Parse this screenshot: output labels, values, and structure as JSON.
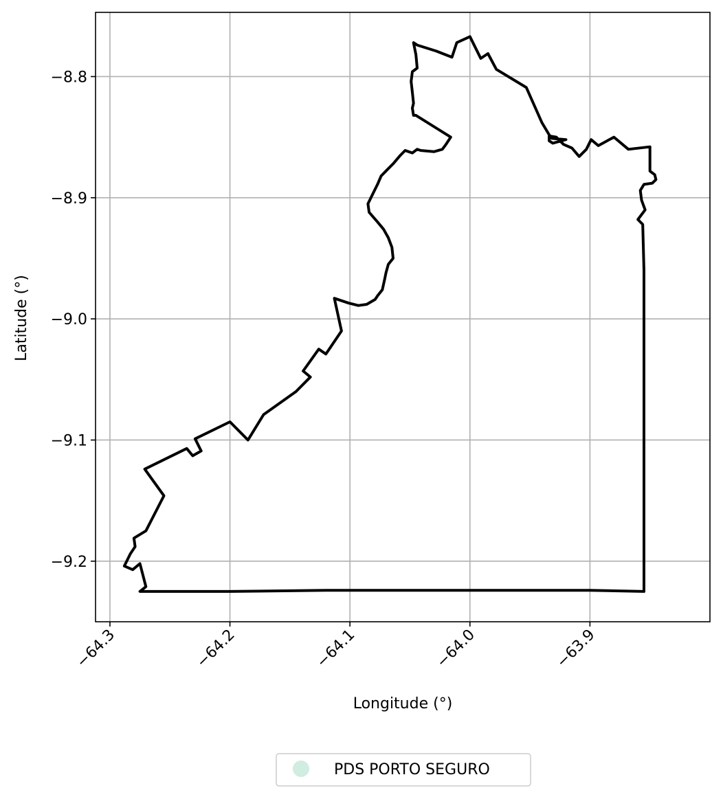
{
  "map": {
    "xlabel": "Longitude (°)",
    "ylabel": "Latitude (°)",
    "xlim": [
      -64.312,
      -63.8
    ],
    "ylim": [
      -9.25,
      -8.747
    ],
    "xticks": [
      -64.3,
      -64.2,
      -64.1,
      -64.0,
      -63.9
    ],
    "xtick_labels": [
      "−64.3",
      "−64.2",
      "−64.1",
      "−64.0",
      "−63.9"
    ],
    "yticks": [
      -8.8,
      -8.9,
      -9.0,
      -9.1,
      -9.2
    ],
    "ytick_labels": [
      "−8.8",
      "−8.9",
      "−9.0",
      "−9.1",
      "−9.2"
    ],
    "grid": true,
    "legend": {
      "placement": "bottom-center",
      "entries": [
        {
          "label": "PDS PORTO SEGURO",
          "color": "#d1ece0"
        }
      ]
    },
    "boundary": {
      "name": "PDS PORTO SEGURO",
      "stroke_color": "#000000",
      "coordinates": [
        [
          -64.0,
          -8.767
        ],
        [
          -64.011,
          -8.772
        ],
        [
          -64.015,
          -8.784
        ],
        [
          -64.028,
          -8.779
        ],
        [
          -64.044,
          -8.774
        ],
        [
          -64.047,
          -8.772
        ],
        [
          -64.045,
          -8.782
        ],
        [
          -64.044,
          -8.793
        ],
        [
          -64.048,
          -8.796
        ],
        [
          -64.049,
          -8.804
        ],
        [
          -64.048,
          -8.813
        ],
        [
          -64.047,
          -8.822
        ],
        [
          -64.048,
          -8.826
        ],
        [
          -64.047,
          -8.832
        ],
        [
          -64.045,
          -8.832
        ],
        [
          -64.016,
          -8.85
        ],
        [
          -64.02,
          -8.856
        ],
        [
          -64.023,
          -8.86
        ],
        [
          -64.03,
          -8.862
        ],
        [
          -64.041,
          -8.861
        ],
        [
          -64.044,
          -8.86
        ],
        [
          -64.048,
          -8.863
        ],
        [
          -64.051,
          -8.862
        ],
        [
          -64.054,
          -8.861
        ],
        [
          -64.058,
          -8.865
        ],
        [
          -64.064,
          -8.872
        ],
        [
          -64.069,
          -8.877
        ],
        [
          -64.074,
          -8.882
        ],
        [
          -64.077,
          -8.889
        ],
        [
          -64.081,
          -8.897
        ],
        [
          -64.085,
          -8.905
        ],
        [
          -64.084,
          -8.912
        ],
        [
          -64.077,
          -8.92
        ],
        [
          -64.072,
          -8.926
        ],
        [
          -64.068,
          -8.933
        ],
        [
          -64.065,
          -8.941
        ],
        [
          -64.064,
          -8.95
        ],
        [
          -64.068,
          -8.955
        ],
        [
          -64.07,
          -8.962
        ],
        [
          -64.071,
          -8.967
        ],
        [
          -64.073,
          -8.976
        ],
        [
          -64.077,
          -8.981
        ],
        [
          -64.079,
          -8.984
        ],
        [
          -64.086,
          -8.988
        ],
        [
          -64.093,
          -8.989
        ],
        [
          -64.101,
          -8.987
        ],
        [
          -64.113,
          -8.983
        ],
        [
          -64.107,
          -9.01
        ],
        [
          -64.12,
          -9.029
        ],
        [
          -64.126,
          -9.025
        ],
        [
          -64.139,
          -9.043
        ],
        [
          -64.133,
          -9.048
        ],
        [
          -64.145,
          -9.06
        ],
        [
          -64.172,
          -9.079
        ],
        [
          -64.185,
          -9.1
        ],
        [
          -64.2,
          -9.085
        ],
        [
          -64.229,
          -9.099
        ],
        [
          -64.224,
          -9.109
        ],
        [
          -64.231,
          -9.113
        ],
        [
          -64.236,
          -9.107
        ],
        [
          -64.271,
          -9.124
        ],
        [
          -64.255,
          -9.146
        ],
        [
          -64.27,
          -9.175
        ],
        [
          -64.28,
          -9.181
        ],
        [
          -64.279,
          -9.188
        ],
        [
          -64.283,
          -9.194
        ],
        [
          -64.288,
          -9.204
        ],
        [
          -64.281,
          -9.207
        ],
        [
          -64.275,
          -9.202
        ],
        [
          -64.27,
          -9.221
        ],
        [
          -64.275,
          -9.225
        ],
        [
          -64.2,
          -9.225
        ],
        [
          -64.12,
          -9.224
        ],
        [
          -64.0,
          -9.224
        ],
        [
          -63.9,
          -9.224
        ],
        [
          -63.855,
          -9.225
        ],
        [
          -63.855,
          -9.04
        ],
        [
          -63.855,
          -8.96
        ],
        [
          -63.856,
          -8.922
        ],
        [
          -63.86,
          -8.918
        ],
        [
          -63.854,
          -8.91
        ],
        [
          -63.857,
          -8.902
        ],
        [
          -63.858,
          -8.894
        ],
        [
          -63.855,
          -8.889
        ],
        [
          -63.848,
          -8.888
        ],
        [
          -63.845,
          -8.885
        ],
        [
          -63.846,
          -8.881
        ],
        [
          -63.85,
          -8.878
        ],
        [
          -63.85,
          -8.858
        ],
        [
          -63.868,
          -8.86
        ],
        [
          -63.88,
          -8.85
        ],
        [
          -63.893,
          -8.857
        ],
        [
          -63.899,
          -8.852
        ],
        [
          -63.903,
          -8.86
        ],
        [
          -63.909,
          -8.866
        ],
        [
          -63.915,
          -8.859
        ],
        [
          -63.922,
          -8.856
        ],
        [
          -63.928,
          -8.85
        ],
        [
          -63.934,
          -8.849
        ],
        [
          -63.934,
          -8.853
        ],
        [
          -63.931,
          -8.855
        ],
        [
          -63.92,
          -8.852
        ],
        [
          -63.932,
          -8.851
        ],
        [
          -63.934,
          -8.848
        ],
        [
          -63.94,
          -8.838
        ],
        [
          -63.953,
          -8.809
        ],
        [
          -63.978,
          -8.794
        ],
        [
          -63.985,
          -8.781
        ],
        [
          -63.991,
          -8.785
        ],
        [
          -64.0,
          -8.767
        ]
      ]
    }
  }
}
